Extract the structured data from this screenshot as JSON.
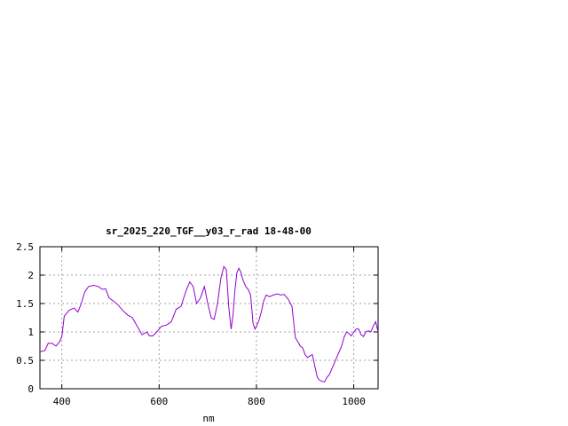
{
  "chart_data": {
    "type": "line",
    "title": "sr_2025_220_TGF__y03_r_rad 18-48-00",
    "xlabel": "nm",
    "ylabel": "",
    "xlim": [
      355,
      1050
    ],
    "ylim": [
      0,
      2.5
    ],
    "x_ticks": [
      400,
      600,
      800,
      1000
    ],
    "y_ticks": [
      0,
      0.5,
      1,
      1.5,
      2,
      2.5
    ],
    "y_tick_labels": [
      "0",
      "0.5",
      "1",
      "1.5",
      "2",
      "2.5"
    ],
    "grid": true,
    "legend": "none",
    "series_color": "#9400d3",
    "x": [
      355,
      365,
      372,
      380,
      388,
      395,
      400,
      405,
      415,
      425,
      433,
      440,
      447,
      455,
      465,
      475,
      483,
      490,
      497,
      505,
      515,
      525,
      535,
      545,
      555,
      565,
      575,
      580,
      587,
      595,
      605,
      615,
      625,
      635,
      645,
      655,
      663,
      670,
      677,
      685,
      693,
      700,
      707,
      713,
      720,
      727,
      733,
      738,
      743,
      748,
      752,
      756,
      760,
      764,
      768,
      773,
      778,
      783,
      788,
      793,
      797,
      800,
      805,
      810,
      815,
      820,
      827,
      835,
      843,
      850,
      857,
      865,
      873,
      880,
      887,
      890,
      895,
      900,
      905,
      910,
      915,
      920,
      925,
      930,
      935,
      940,
      945,
      950,
      955,
      960,
      965,
      970,
      975,
      980,
      985,
      990,
      995,
      1000,
      1005,
      1010,
      1015,
      1020,
      1025,
      1030,
      1035,
      1040,
      1045,
      1050
    ],
    "values": [
      0.65,
      0.67,
      0.8,
      0.8,
      0.75,
      0.82,
      0.92,
      1.28,
      1.38,
      1.42,
      1.35,
      1.5,
      1.7,
      1.8,
      1.82,
      1.8,
      1.75,
      1.76,
      1.6,
      1.55,
      1.48,
      1.38,
      1.3,
      1.25,
      1.1,
      0.95,
      1.0,
      0.93,
      0.93,
      1.0,
      1.1,
      1.12,
      1.18,
      1.4,
      1.45,
      1.72,
      1.88,
      1.8,
      1.5,
      1.6,
      1.8,
      1.5,
      1.25,
      1.22,
      1.5,
      1.95,
      2.15,
      2.1,
      1.45,
      1.05,
      1.3,
      1.75,
      2.05,
      2.12,
      2.05,
      1.9,
      1.8,
      1.75,
      1.65,
      1.15,
      1.05,
      1.1,
      1.2,
      1.35,
      1.55,
      1.65,
      1.62,
      1.65,
      1.67,
      1.65,
      1.66,
      1.58,
      1.45,
      0.9,
      0.8,
      0.75,
      0.72,
      0.6,
      0.55,
      0.58,
      0.6,
      0.4,
      0.2,
      0.15,
      0.13,
      0.12,
      0.2,
      0.25,
      0.35,
      0.45,
      0.55,
      0.65,
      0.75,
      0.9,
      1.0,
      0.97,
      0.93,
      1.0,
      1.05,
      1.05,
      0.95,
      0.92,
      1.0,
      1.02,
      1.0,
      1.1,
      1.18,
      1.0
    ]
  }
}
